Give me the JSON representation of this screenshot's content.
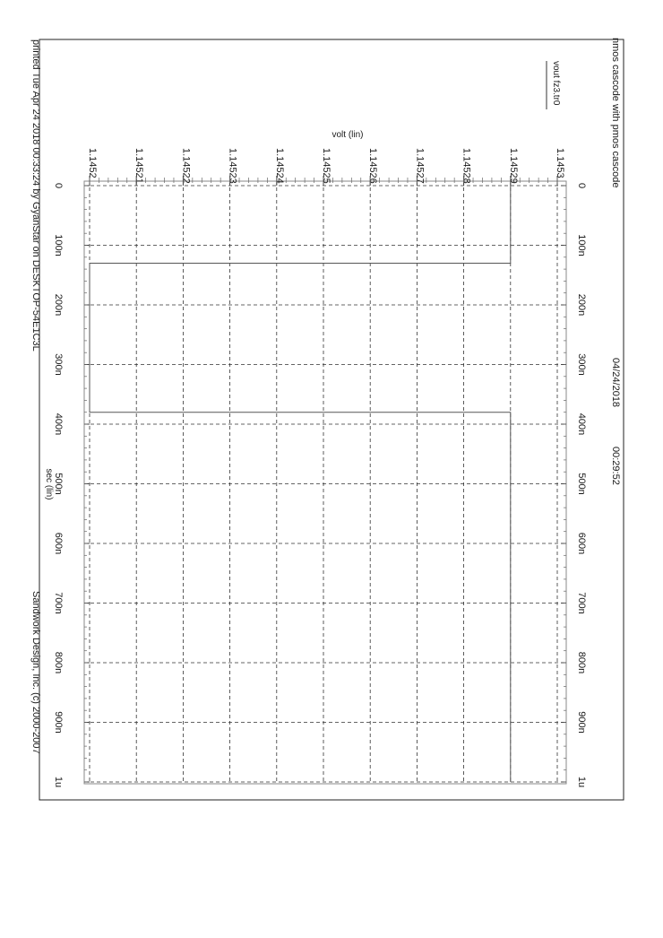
{
  "header": {
    "title": "nmos cascode with pmos cascode",
    "date": "04/24/2018",
    "time": "00:29:52",
    "printed": "printed Tue Apr 24 2018 00:33:24 by GyanStar on DESKTOP-54E1C3L",
    "copyright": "Sandwork Design, Inc. (c) 2000-2007"
  },
  "chart_data": {
    "type": "line",
    "title": "nmos cascode with pmos cascode",
    "xlabel": "sec (lin)",
    "ylabel": "volt (lin)",
    "x_ticks": [
      "0",
      "100n",
      "200n",
      "300n",
      "400n",
      "500n",
      "600n",
      "700n",
      "800n",
      "900n",
      "1u"
    ],
    "x_tick_values": [
      0,
      1e-07,
      2e-07,
      3e-07,
      4e-07,
      5e-07,
      6e-07,
      7e-07,
      8e-07,
      9e-07,
      1e-06
    ],
    "y_ticks": [
      "1.1452",
      "1.14521",
      "1.14522",
      "1.14523",
      "1.14524",
      "1.14525",
      "1.14526",
      "1.14527",
      "1.14528",
      "1.14529",
      "1.1453"
    ],
    "y_tick_values": [
      1.1452,
      1.14521,
      1.14522,
      1.14523,
      1.14524,
      1.14525,
      1.14526,
      1.14527,
      1.14528,
      1.14529,
      1.1453
    ],
    "xlim": [
      0,
      1e-06
    ],
    "ylim": [
      1.1452,
      1.1453
    ],
    "grid": true,
    "legend": "vout fz3.tr0",
    "series": [
      {
        "name": "vout fz3.tr0",
        "x": [
          0,
          1.3e-07,
          1.3e-07,
          3.8e-07,
          3.8e-07,
          1e-06
        ],
        "y": [
          1.14529,
          1.14529,
          1.1452,
          1.1452,
          1.14529,
          1.14529
        ]
      }
    ]
  }
}
